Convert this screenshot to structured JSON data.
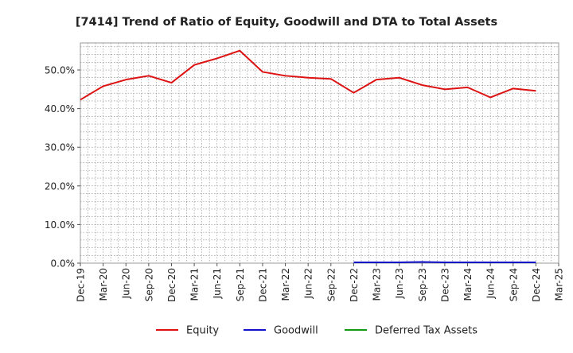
{
  "chart_data": {
    "type": "line",
    "title": "[7414]  Trend of Ratio of Equity, Goodwill and DTA to Total Assets",
    "xlabel": "",
    "ylabel": "",
    "ylim": [
      0,
      57
    ],
    "yticks": [
      0,
      10,
      20,
      30,
      40,
      50
    ],
    "ytick_labels": [
      "0.0%",
      "10.0%",
      "20.0%",
      "30.0%",
      "40.0%",
      "50.0%"
    ],
    "grid": true,
    "legend_position": "bottom",
    "categories": [
      "Dec-19",
      "Mar-20",
      "Jun-20",
      "Sep-20",
      "Dec-20",
      "Mar-21",
      "Jun-21",
      "Sep-21",
      "Dec-21",
      "Mar-22",
      "Jun-22",
      "Sep-22",
      "Dec-22",
      "Mar-23",
      "Jun-23",
      "Sep-23",
      "Dec-23",
      "Mar-24",
      "Jun-24",
      "Sep-24",
      "Dec-24",
      "Mar-25"
    ],
    "series": [
      {
        "name": "Equity",
        "color": "#dd1111",
        "values": [
          42.3,
          45.8,
          47.5,
          48.5,
          46.7,
          51.3,
          53.0,
          55.0,
          49.5,
          48.5,
          48.0,
          47.7,
          44.1,
          47.5,
          48.0,
          46.1,
          45.0,
          45.5,
          42.9,
          45.2,
          44.6,
          null
        ]
      },
      {
        "name": "Goodwill",
        "color": "#1111cc",
        "values": [
          null,
          null,
          null,
          null,
          null,
          null,
          null,
          null,
          null,
          null,
          null,
          null,
          0.2,
          0.2,
          0.2,
          0.3,
          0.2,
          0.2,
          0.2,
          0.2,
          0.2,
          null
        ]
      },
      {
        "name": "Deferred Tax Assets",
        "color": "#119911",
        "values": [
          null,
          null,
          null,
          null,
          null,
          null,
          null,
          null,
          null,
          null,
          null,
          null,
          null,
          null,
          null,
          null,
          null,
          null,
          null,
          null,
          null,
          null
        ]
      }
    ]
  }
}
